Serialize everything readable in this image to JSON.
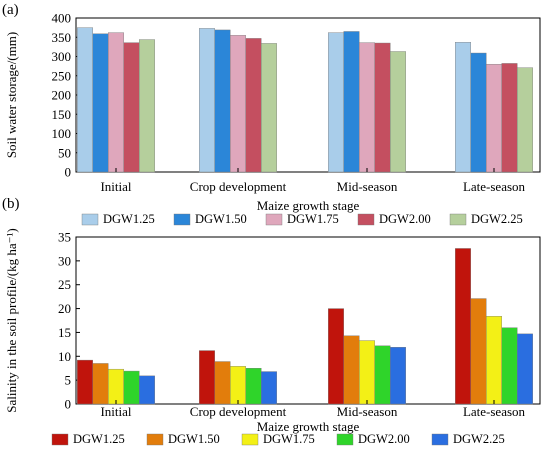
{
  "chart_data": [
    {
      "type": "bar",
      "panel_label": "(a)",
      "categories": [
        "Initial",
        "Crop development",
        "Mid-season",
        "Late-season"
      ],
      "ylabel": "Soil water storage/(mm)",
      "xlabel": "Maize growth stage",
      "ylim": [
        0,
        400
      ],
      "yticks": [
        0,
        50,
        100,
        150,
        200,
        250,
        300,
        350,
        400
      ],
      "legend_position": "bottom",
      "series": [
        {
          "name": "DGW1.25",
          "color": "#a9cdea",
          "values": [
            375,
            373,
            362,
            337
          ]
        },
        {
          "name": "DGW1.50",
          "color": "#2b86d8",
          "values": [
            359,
            369,
            365,
            309
          ]
        },
        {
          "name": "DGW1.75",
          "color": "#dfa7bc",
          "values": [
            362,
            355,
            336,
            280
          ]
        },
        {
          "name": "DGW2.00",
          "color": "#c44f60",
          "values": [
            336,
            347,
            335,
            282
          ]
        },
        {
          "name": "DGW2.25",
          "color": "#b5cf9c",
          "values": [
            344,
            334,
            313,
            271
          ]
        }
      ]
    },
    {
      "type": "bar",
      "panel_label": "(b)",
      "categories": [
        "Initial",
        "Crop development",
        "Mid-season",
        "Late-season"
      ],
      "ylabel": "Salinity in the soil profile/(kg ha⁻¹)",
      "xlabel": "Maize growth stage",
      "ylim": [
        0,
        35
      ],
      "yticks": [
        0,
        5,
        10,
        15,
        20,
        25,
        30,
        35
      ],
      "legend_position": "bottom",
      "series": [
        {
          "name": "DGW1.25",
          "color": "#c0140c",
          "values": [
            9.2,
            11.2,
            20.0,
            32.6
          ]
        },
        {
          "name": "DGW1.50",
          "color": "#e27d0c",
          "values": [
            8.5,
            8.9,
            14.3,
            22.1
          ]
        },
        {
          "name": "DGW1.75",
          "color": "#f3f016",
          "values": [
            7.3,
            7.9,
            13.3,
            18.4
          ]
        },
        {
          "name": "DGW2.00",
          "color": "#2fd42a",
          "values": [
            6.9,
            7.5,
            12.2,
            16.0
          ]
        },
        {
          "name": "DGW2.25",
          "color": "#2a6ee0",
          "values": [
            5.9,
            6.8,
            11.9,
            14.7
          ]
        }
      ]
    }
  ]
}
